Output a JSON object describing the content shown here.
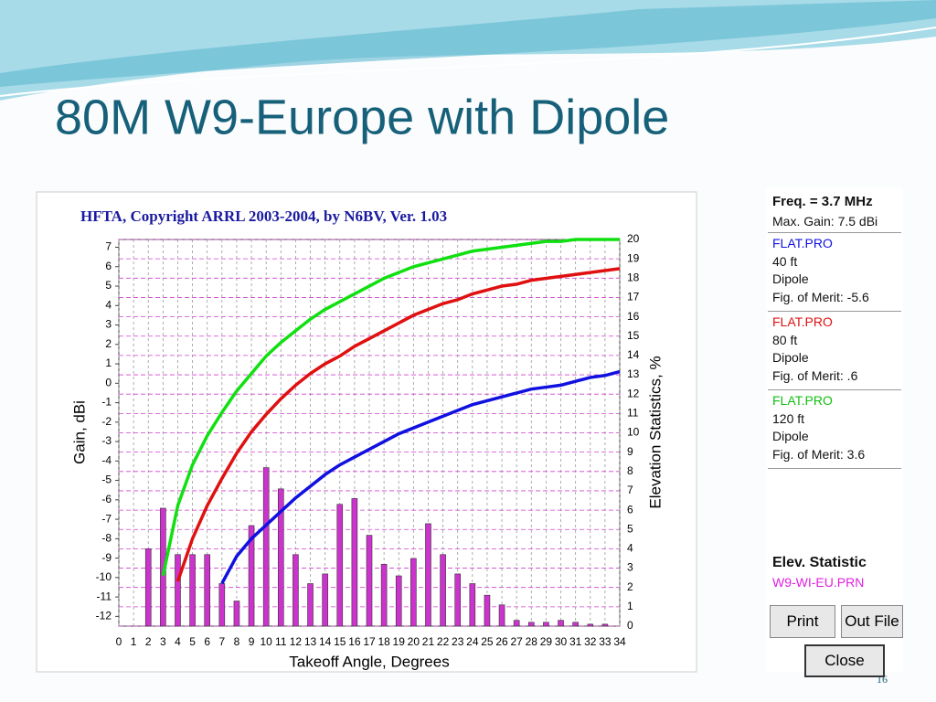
{
  "slide": {
    "title": "80M W9-Europe with Dipole",
    "page_number": "16"
  },
  "chart_data": {
    "type": "combo",
    "title": "HFTA, Copyright ARRL 2003-2004, by N6BV, Ver. 1.03",
    "x_label": "Takeoff Angle, Degrees",
    "y_label": "Gain, dBi",
    "y2_label": "Elevation Statistics, %",
    "x": [
      0,
      1,
      2,
      3,
      4,
      5,
      6,
      7,
      8,
      9,
      10,
      11,
      12,
      13,
      14,
      15,
      16,
      17,
      18,
      19,
      20,
      21,
      22,
      23,
      24,
      25,
      26,
      27,
      28,
      29,
      30,
      31,
      32,
      33,
      34
    ],
    "xlim": [
      0,
      34
    ],
    "xticks": [
      0,
      1,
      2,
      3,
      4,
      5,
      6,
      7,
      8,
      9,
      10,
      11,
      12,
      13,
      14,
      15,
      16,
      17,
      18,
      19,
      20,
      21,
      22,
      23,
      24,
      25,
      26,
      27,
      28,
      29,
      30,
      31,
      32,
      33,
      34
    ],
    "ylim": [
      -12.5,
      7.4
    ],
    "yticks": [
      -12,
      -11,
      -10,
      -9,
      -8,
      -7,
      -6,
      -5,
      -4,
      -3,
      -2,
      -1,
      0,
      1,
      2,
      3,
      4,
      5,
      6,
      7
    ],
    "y2lim": [
      0,
      20
    ],
    "y2ticks": [
      0,
      1,
      2,
      3,
      4,
      5,
      6,
      7,
      8,
      9,
      10,
      11,
      12,
      13,
      14,
      15,
      16,
      17,
      18,
      19,
      20
    ],
    "grid": true,
    "series": [
      {
        "type": "line",
        "color": "#1010e0",
        "values": [
          null,
          null,
          null,
          null,
          null,
          null,
          null,
          -10.3,
          -8.9,
          -8.0,
          -7.3,
          -6.6,
          -5.9,
          -5.3,
          -4.7,
          -4.2,
          -3.8,
          -3.4,
          -3.0,
          -2.6,
          -2.3,
          -2.0,
          -1.7,
          -1.4,
          -1.1,
          -0.9,
          -0.7,
          -0.5,
          -0.3,
          -0.2,
          -0.1,
          0.1,
          0.3,
          0.4,
          0.6
        ]
      },
      {
        "type": "line",
        "color": "#e01010",
        "values": [
          null,
          null,
          null,
          null,
          -10.2,
          -8.0,
          -6.3,
          -4.9,
          -3.6,
          -2.5,
          -1.6,
          -0.8,
          -0.1,
          0.5,
          1.0,
          1.4,
          1.9,
          2.3,
          2.7,
          3.1,
          3.5,
          3.8,
          4.1,
          4.3,
          4.6,
          4.8,
          5.0,
          5.1,
          5.3,
          5.4,
          5.5,
          5.6,
          5.7,
          5.8,
          5.9
        ]
      },
      {
        "type": "line",
        "color": "#10e010",
        "values": [
          null,
          null,
          null,
          -9.9,
          -6.3,
          -4.2,
          -2.7,
          -1.5,
          -0.4,
          0.5,
          1.4,
          2.1,
          2.7,
          3.3,
          3.8,
          4.2,
          4.6,
          5.0,
          5.4,
          5.7,
          6.0,
          6.2,
          6.4,
          6.6,
          6.8,
          6.9,
          7.0,
          7.1,
          7.2,
          7.3,
          7.3,
          7.4,
          7.4,
          7.4,
          7.4
        ]
      },
      {
        "type": "bar",
        "axis": "y2",
        "color": "#cc33cc",
        "values": [
          0,
          0,
          4.0,
          6.1,
          3.7,
          3.7,
          3.7,
          2.2,
          1.3,
          5.2,
          8.2,
          7.1,
          3.7,
          2.2,
          2.7,
          6.3,
          6.6,
          4.7,
          3.2,
          2.6,
          3.5,
          5.3,
          3.7,
          2.7,
          2.2,
          1.6,
          1.1,
          0.3,
          0.2,
          0.2,
          0.3,
          0.2,
          0.1,
          0.1,
          0
        ]
      }
    ]
  },
  "panel": {
    "freq": "Freq. = 3.7 MHz",
    "max_gain": "Max. Gain: 7.5 dBi",
    "entries": [
      {
        "file": "FLAT.PRO",
        "color": "#1010e0",
        "height": "40 ft",
        "antenna": "Dipole",
        "merit": "Fig. of Merit: -5.6"
      },
      {
        "file": "FLAT.PRO",
        "color": "#e01010",
        "height": "80 ft",
        "antenna": "Dipole",
        "merit": "Fig. of Merit: .6"
      },
      {
        "file": "FLAT.PRO",
        "color": "#10c010",
        "height": "120 ft",
        "antenna": "Dipole",
        "merit": "Fig. of Merit: 3.6"
      }
    ],
    "stat_title": "Elev. Statistic",
    "stat_file": "W9-WI-EU.PRN",
    "buttons": [
      "Print",
      "Out File",
      "Close"
    ]
  }
}
